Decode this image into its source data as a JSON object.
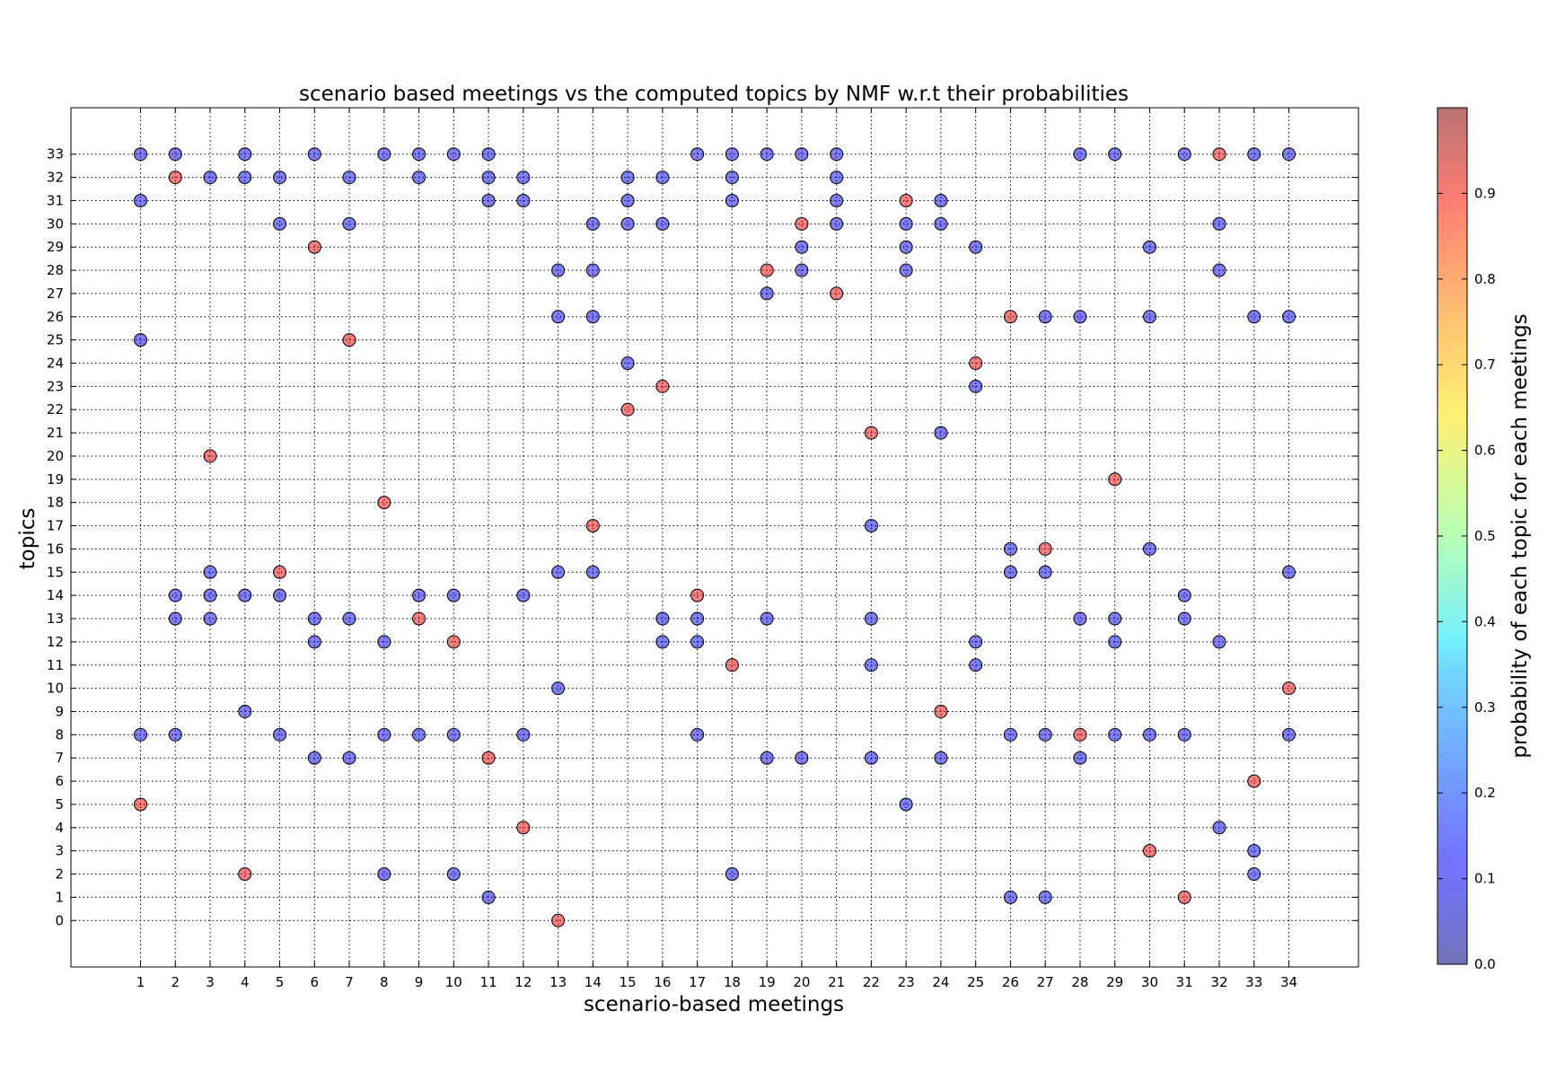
{
  "chart_data": {
    "type": "scatter",
    "title": "scenario based meetings vs the computed topics by NMF w.r.t their probabilities",
    "xlabel": "scenario-based meetings",
    "ylabel": "topics",
    "xlim": [
      -1,
      36
    ],
    "ylim": [
      -2,
      35
    ],
    "x_ticks": [
      1,
      2,
      3,
      4,
      5,
      6,
      7,
      8,
      9,
      10,
      11,
      12,
      13,
      14,
      15,
      16,
      17,
      18,
      19,
      20,
      21,
      22,
      23,
      24,
      25,
      26,
      27,
      28,
      29,
      30,
      31,
      32,
      33,
      34
    ],
    "y_ticks": [
      0,
      1,
      2,
      3,
      4,
      5,
      6,
      7,
      8,
      9,
      10,
      11,
      12,
      13,
      14,
      15,
      16,
      17,
      18,
      19,
      20,
      21,
      22,
      23,
      24,
      25,
      26,
      27,
      28,
      29,
      30,
      31,
      32,
      33
    ],
    "grid": true,
    "colorbar": {
      "label": "probability of each topic for each meetings",
      "ticks": [
        "0.0",
        "0.1",
        "0.2",
        "0.3",
        "0.4",
        "0.5",
        "0.6",
        "0.7",
        "0.8",
        "0.9"
      ],
      "range": [
        0,
        1
      ],
      "colormap": "jet",
      "alpha": 0.5
    },
    "points": [
      [
        1,
        33,
        0.1
      ],
      [
        1,
        31,
        0.1
      ],
      [
        1,
        25,
        0.1
      ],
      [
        1,
        8,
        0.1
      ],
      [
        1,
        5,
        0.9
      ],
      [
        2,
        33,
        0.1
      ],
      [
        2,
        32,
        0.9
      ],
      [
        2,
        14,
        0.1
      ],
      [
        2,
        13,
        0.1
      ],
      [
        2,
        8,
        0.1
      ],
      [
        3,
        32,
        0.1
      ],
      [
        3,
        20,
        0.9
      ],
      [
        3,
        15,
        0.1
      ],
      [
        3,
        14,
        0.1
      ],
      [
        3,
        13,
        0.1
      ],
      [
        4,
        33,
        0.1
      ],
      [
        4,
        32,
        0.1
      ],
      [
        4,
        14,
        0.1
      ],
      [
        4,
        9,
        0.1
      ],
      [
        4,
        2,
        0.9
      ],
      [
        5,
        32,
        0.1
      ],
      [
        5,
        30,
        0.1
      ],
      [
        5,
        15,
        0.9
      ],
      [
        5,
        14,
        0.1
      ],
      [
        5,
        8,
        0.1
      ],
      [
        6,
        33,
        0.1
      ],
      [
        6,
        29,
        0.9
      ],
      [
        6,
        13,
        0.1
      ],
      [
        6,
        12,
        0.1
      ],
      [
        6,
        7,
        0.1
      ],
      [
        7,
        32,
        0.1
      ],
      [
        7,
        30,
        0.1
      ],
      [
        7,
        25,
        0.9
      ],
      [
        7,
        13,
        0.1
      ],
      [
        7,
        7,
        0.1
      ],
      [
        8,
        33,
        0.1
      ],
      [
        8,
        18,
        0.9
      ],
      [
        8,
        12,
        0.1
      ],
      [
        8,
        8,
        0.1
      ],
      [
        8,
        2,
        0.1
      ],
      [
        9,
        33,
        0.1
      ],
      [
        9,
        32,
        0.1
      ],
      [
        9,
        14,
        0.1
      ],
      [
        9,
        13,
        0.9
      ],
      [
        9,
        8,
        0.1
      ],
      [
        10,
        33,
        0.1
      ],
      [
        10,
        14,
        0.1
      ],
      [
        10,
        12,
        0.9
      ],
      [
        10,
        8,
        0.1
      ],
      [
        10,
        2,
        0.1
      ],
      [
        11,
        33,
        0.1
      ],
      [
        11,
        32,
        0.1
      ],
      [
        11,
        31,
        0.1
      ],
      [
        11,
        7,
        0.9
      ],
      [
        11,
        1,
        0.1
      ],
      [
        12,
        32,
        0.1
      ],
      [
        12,
        31,
        0.1
      ],
      [
        12,
        14,
        0.1
      ],
      [
        12,
        8,
        0.1
      ],
      [
        12,
        4,
        0.9
      ],
      [
        13,
        28,
        0.1
      ],
      [
        13,
        26,
        0.1
      ],
      [
        13,
        15,
        0.1
      ],
      [
        13,
        10,
        0.1
      ],
      [
        13,
        0,
        0.9
      ],
      [
        14,
        30,
        0.1
      ],
      [
        14,
        28,
        0.1
      ],
      [
        14,
        26,
        0.1
      ],
      [
        14,
        17,
        0.9
      ],
      [
        14,
        15,
        0.1
      ],
      [
        15,
        32,
        0.1
      ],
      [
        15,
        31,
        0.1
      ],
      [
        15,
        30,
        0.1
      ],
      [
        15,
        24,
        0.1
      ],
      [
        15,
        22,
        0.9
      ],
      [
        16,
        32,
        0.1
      ],
      [
        16,
        30,
        0.1
      ],
      [
        16,
        23,
        0.9
      ],
      [
        16,
        13,
        0.1
      ],
      [
        16,
        12,
        0.1
      ],
      [
        17,
        33,
        0.1
      ],
      [
        17,
        14,
        0.9
      ],
      [
        17,
        13,
        0.1
      ],
      [
        17,
        12,
        0.1
      ],
      [
        17,
        8,
        0.1
      ],
      [
        18,
        33,
        0.1
      ],
      [
        18,
        32,
        0.1
      ],
      [
        18,
        31,
        0.1
      ],
      [
        18,
        11,
        0.9
      ],
      [
        18,
        2,
        0.1
      ],
      [
        19,
        33,
        0.1
      ],
      [
        19,
        28,
        0.9
      ],
      [
        19,
        27,
        0.1
      ],
      [
        19,
        13,
        0.1
      ],
      [
        19,
        7,
        0.1
      ],
      [
        20,
        33,
        0.1
      ],
      [
        20,
        30,
        0.9
      ],
      [
        20,
        29,
        0.1
      ],
      [
        20,
        28,
        0.1
      ],
      [
        20,
        7,
        0.1
      ],
      [
        21,
        33,
        0.1
      ],
      [
        21,
        32,
        0.1
      ],
      [
        21,
        31,
        0.1
      ],
      [
        21,
        30,
        0.1
      ],
      [
        21,
        27,
        0.9
      ],
      [
        22,
        21,
        0.9
      ],
      [
        22,
        17,
        0.1
      ],
      [
        22,
        13,
        0.1
      ],
      [
        22,
        11,
        0.1
      ],
      [
        22,
        7,
        0.1
      ],
      [
        23,
        31,
        0.9
      ],
      [
        23,
        30,
        0.1
      ],
      [
        23,
        29,
        0.1
      ],
      [
        23,
        28,
        0.1
      ],
      [
        23,
        5,
        0.1
      ],
      [
        24,
        31,
        0.1
      ],
      [
        24,
        30,
        0.1
      ],
      [
        24,
        21,
        0.1
      ],
      [
        24,
        9,
        0.9
      ],
      [
        24,
        7,
        0.1
      ],
      [
        25,
        29,
        0.1
      ],
      [
        25,
        24,
        0.9
      ],
      [
        25,
        23,
        0.1
      ],
      [
        25,
        12,
        0.1
      ],
      [
        25,
        11,
        0.1
      ],
      [
        26,
        26,
        0.9
      ],
      [
        26,
        16,
        0.1
      ],
      [
        26,
        15,
        0.1
      ],
      [
        26,
        8,
        0.1
      ],
      [
        26,
        1,
        0.1
      ],
      [
        27,
        26,
        0.1
      ],
      [
        27,
        16,
        0.9
      ],
      [
        27,
        15,
        0.1
      ],
      [
        27,
        8,
        0.1
      ],
      [
        27,
        1,
        0.1
      ],
      [
        28,
        33,
        0.1
      ],
      [
        28,
        26,
        0.1
      ],
      [
        28,
        13,
        0.1
      ],
      [
        28,
        8,
        0.9
      ],
      [
        28,
        7,
        0.1
      ],
      [
        29,
        33,
        0.1
      ],
      [
        29,
        19,
        0.9
      ],
      [
        29,
        13,
        0.1
      ],
      [
        29,
        12,
        0.1
      ],
      [
        29,
        8,
        0.1
      ],
      [
        30,
        29,
        0.1
      ],
      [
        30,
        26,
        0.1
      ],
      [
        30,
        16,
        0.1
      ],
      [
        30,
        8,
        0.1
      ],
      [
        30,
        3,
        0.9
      ],
      [
        31,
        33,
        0.1
      ],
      [
        31,
        14,
        0.1
      ],
      [
        31,
        13,
        0.1
      ],
      [
        31,
        8,
        0.1
      ],
      [
        31,
        1,
        0.9
      ],
      [
        32,
        33,
        0.9
      ],
      [
        32,
        30,
        0.1
      ],
      [
        32,
        28,
        0.1
      ],
      [
        32,
        12,
        0.1
      ],
      [
        32,
        4,
        0.1
      ],
      [
        33,
        33,
        0.1
      ],
      [
        33,
        26,
        0.1
      ],
      [
        33,
        6,
        0.9
      ],
      [
        33,
        3,
        0.1
      ],
      [
        33,
        2,
        0.1
      ],
      [
        34,
        33,
        0.1
      ],
      [
        34,
        26,
        0.1
      ],
      [
        34,
        15,
        0.1
      ],
      [
        34,
        10,
        0.9
      ],
      [
        34,
        8,
        0.1
      ]
    ]
  }
}
